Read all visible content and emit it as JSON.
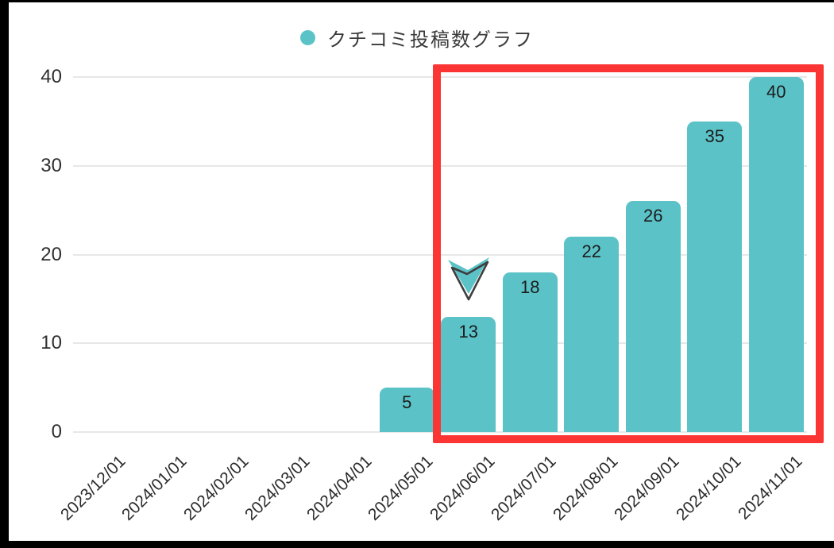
{
  "legend": {
    "label": "クチコミ投稿数グラフ",
    "dot_color": "#5bc3c8"
  },
  "chart_data": {
    "type": "bar",
    "title": "クチコミ投稿数グラフ",
    "categories": [
      "2023/12/01",
      "2024/01/01",
      "2024/02/01",
      "2024/03/01",
      "2024/04/01",
      "2024/05/01",
      "2024/06/01",
      "2024/07/01",
      "2024/08/01",
      "2024/09/01",
      "2024/10/01",
      "2024/11/01"
    ],
    "values": [
      0,
      0,
      0,
      0,
      0,
      5,
      13,
      18,
      22,
      26,
      35,
      40
    ],
    "xlabel": "",
    "ylabel": "",
    "ylim": [
      0,
      40
    ],
    "yticks": [
      0,
      10,
      20,
      30,
      40
    ],
    "grid": true,
    "legend_position": "top-center",
    "value_label_position": "inside-top",
    "bar_color": "#5bc3c8",
    "grid_color": "#e7e7e7",
    "text_color": "#2b2b2b",
    "annotations": [
      {
        "type": "highlight-box",
        "from_category": "2024/06/01",
        "to_category": "2024/11/01",
        "color": "#fb3434",
        "thickness": 10
      },
      {
        "type": "arrow-down-icon",
        "at_category": "2024/06/01",
        "fill_color": "#5bc3c8",
        "outline_color": "#3e3e3e"
      }
    ]
  }
}
